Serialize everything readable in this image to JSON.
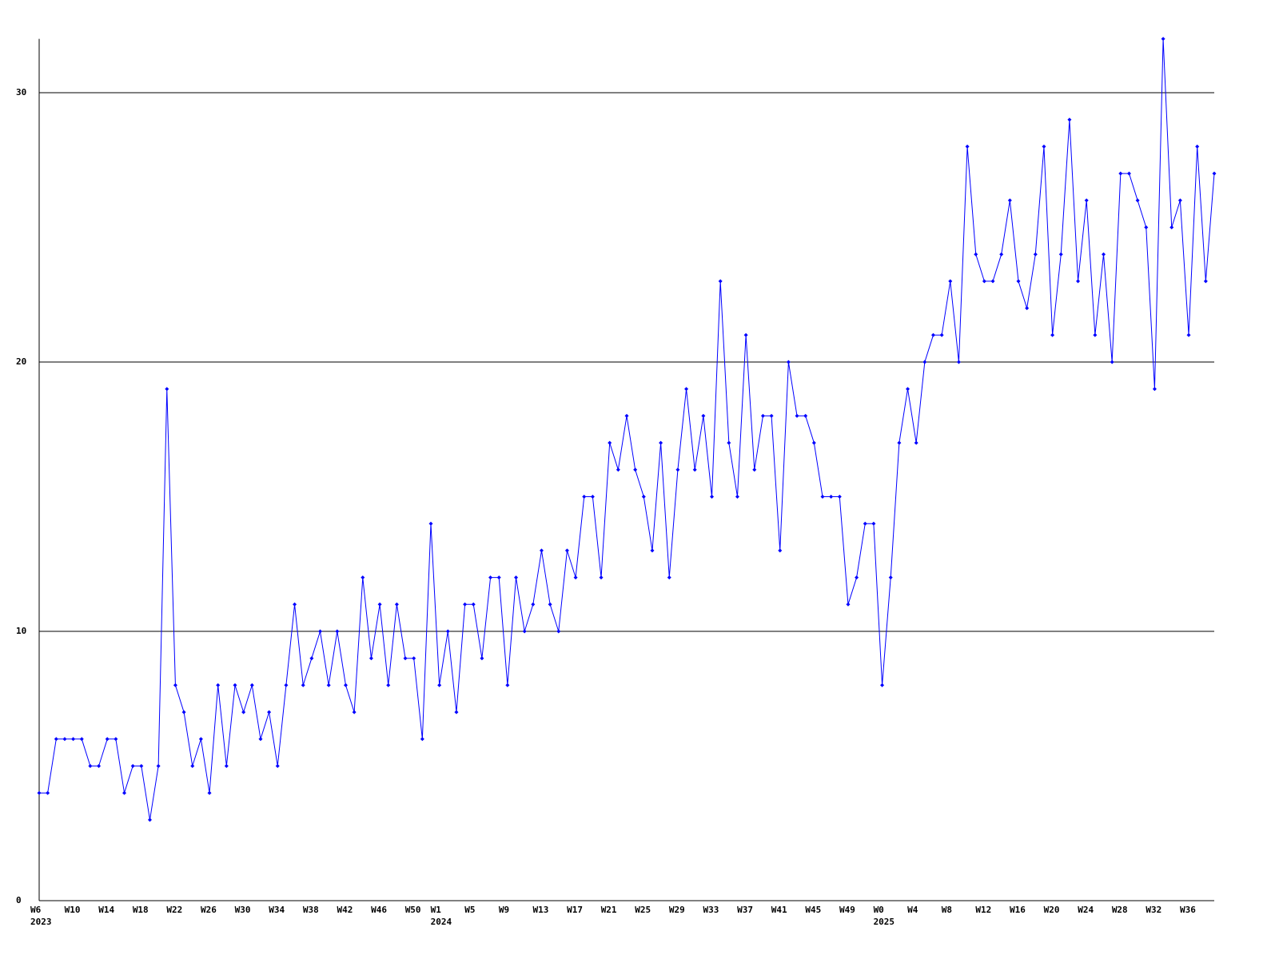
{
  "chart_data": {
    "type": "line",
    "color": "#0000ff",
    "grid": true,
    "categories": [
      "W6",
      null,
      null,
      null,
      "W10",
      null,
      null,
      null,
      "W14",
      null,
      null,
      null,
      "W18",
      null,
      null,
      null,
      "W22",
      null,
      null,
      null,
      "W26",
      null,
      null,
      null,
      "W30",
      null,
      null,
      null,
      "W34",
      null,
      null,
      null,
      "W38",
      null,
      null,
      null,
      "W42",
      null,
      null,
      null,
      "W46",
      null,
      null,
      null,
      "W50",
      null,
      null,
      "W1",
      null,
      null,
      null,
      "W5",
      null,
      null,
      null,
      "W9",
      null,
      null,
      null,
      "W13",
      null,
      null,
      null,
      "W17",
      null,
      null,
      null,
      "W21",
      null,
      null,
      null,
      "W25",
      null,
      null,
      null,
      "W29",
      null,
      null,
      null,
      "W33",
      null,
      null,
      null,
      "W37",
      null,
      null,
      null,
      "W41",
      null,
      null,
      null,
      "W45",
      null,
      null,
      null,
      "W49",
      null,
      null,
      null,
      "W0",
      null,
      null,
      null,
      "W4",
      null,
      null,
      null,
      "W8",
      null,
      null,
      null,
      "W12",
      null,
      null,
      null,
      "W16",
      null,
      null,
      null,
      "W20",
      null,
      null,
      null,
      "W24",
      null,
      null,
      null,
      "W28",
      null,
      null,
      null,
      "W32",
      null,
      null,
      null,
      "W36",
      null,
      null,
      null
    ],
    "years": [
      "2023",
      null,
      null,
      null,
      null,
      null,
      null,
      null,
      null,
      null,
      null,
      null,
      null,
      null,
      null,
      null,
      null,
      null,
      null,
      null,
      null,
      null,
      null,
      null,
      null,
      null,
      null,
      null,
      null,
      null,
      null,
      null,
      null,
      null,
      null,
      null,
      null,
      null,
      null,
      null,
      null,
      null,
      null,
      null,
      null,
      null,
      null,
      "2024",
      null,
      null,
      null,
      null,
      null,
      null,
      null,
      null,
      null,
      null,
      null,
      null,
      null,
      null,
      null,
      null,
      null,
      null,
      null,
      null,
      null,
      null,
      null,
      null,
      null,
      null,
      null,
      null,
      null,
      null,
      null,
      null,
      null,
      null,
      null,
      null,
      null,
      null,
      null,
      null,
      null,
      null,
      null,
      null,
      null,
      null,
      null,
      null,
      null,
      null,
      null,
      "2025",
      null,
      null,
      null,
      null,
      null,
      null,
      null,
      null,
      null,
      null,
      null,
      null,
      null,
      null,
      null,
      null,
      null,
      null,
      null,
      null,
      null,
      null,
      null,
      null,
      null,
      null,
      null,
      null,
      null,
      null,
      null,
      null,
      null,
      null,
      null,
      null,
      null,
      null,
      null
    ],
    "values": [
      4,
      4,
      6,
      6,
      6,
      6,
      5,
      5,
      6,
      6,
      4,
      5,
      5,
      3,
      5,
      19,
      8,
      7,
      5,
      6,
      4,
      8,
      5,
      8,
      7,
      8,
      6,
      7,
      5,
      8,
      11,
      8,
      9,
      10,
      8,
      10,
      8,
      7,
      12,
      9,
      11,
      8,
      11,
      9,
      9,
      6,
      14,
      8,
      10,
      7,
      11,
      11,
      9,
      12,
      12,
      8,
      12,
      10,
      11,
      13,
      11,
      10,
      13,
      12,
      15,
      15,
      12,
      17,
      16,
      18,
      16,
      15,
      13,
      17,
      12,
      16,
      19,
      16,
      18,
      15,
      23,
      17,
      15,
      21,
      16,
      18,
      18,
      13,
      20,
      18,
      18,
      17,
      15,
      15,
      15,
      11,
      12,
      14,
      14,
      8,
      12,
      17,
      19,
      17,
      20,
      21,
      21,
      23,
      20,
      28,
      24,
      23,
      23,
      24,
      26,
      23,
      22,
      24,
      28,
      21,
      24,
      29,
      23,
      26,
      21,
      24,
      20,
      27,
      27,
      26,
      25,
      19,
      32,
      25,
      26,
      21,
      28,
      23,
      27
    ],
    "ylim": [
      0,
      32
    ],
    "yticks": [
      0,
      10,
      20,
      30
    ]
  }
}
